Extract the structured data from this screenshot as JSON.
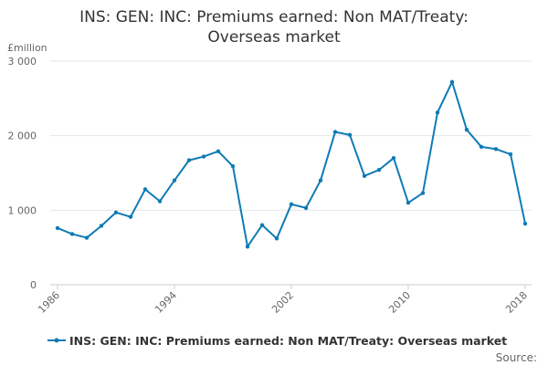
{
  "chart_data": {
    "type": "line",
    "title_lines": [
      "INS: GEN: INC: Premiums earned: Non MAT/Treaty:",
      "Overseas market"
    ],
    "ylabel": "£million",
    "ylim": [
      0,
      3000
    ],
    "yticks": [
      0,
      1000,
      2000,
      3000
    ],
    "ytick_labels": [
      "0",
      "1 000",
      "2 000",
      "3 000"
    ],
    "xticks": [
      1986,
      1994,
      2002,
      2010,
      2018
    ],
    "xlim": [
      1986,
      2018
    ],
    "grid": "horizontal",
    "legend_position": "bottom",
    "series": [
      {
        "name": "INS: GEN: INC: Premiums earned: Non MAT/Treaty: Overseas market",
        "color": "#0f7bb5",
        "x": [
          1986,
          1987,
          1988,
          1989,
          1990,
          1991,
          1992,
          1993,
          1994,
          1995,
          1996,
          1997,
          1998,
          1999,
          2000,
          2001,
          2002,
          2003,
          2004,
          2005,
          2006,
          2007,
          2008,
          2009,
          2010,
          2011,
          2012,
          2013,
          2014,
          2015,
          2016,
          2017,
          2018
        ],
        "values": [
          760,
          680,
          630,
          790,
          970,
          910,
          1280,
          1120,
          1400,
          1670,
          1720,
          1790,
          1590,
          510,
          800,
          620,
          1080,
          1030,
          1400,
          2050,
          2010,
          1460,
          1540,
          1700,
          1100,
          1230,
          2310,
          2720,
          2080,
          1850,
          1820,
          1750,
          820
        ]
      }
    ]
  },
  "footer": {
    "source_label": "Source:"
  }
}
